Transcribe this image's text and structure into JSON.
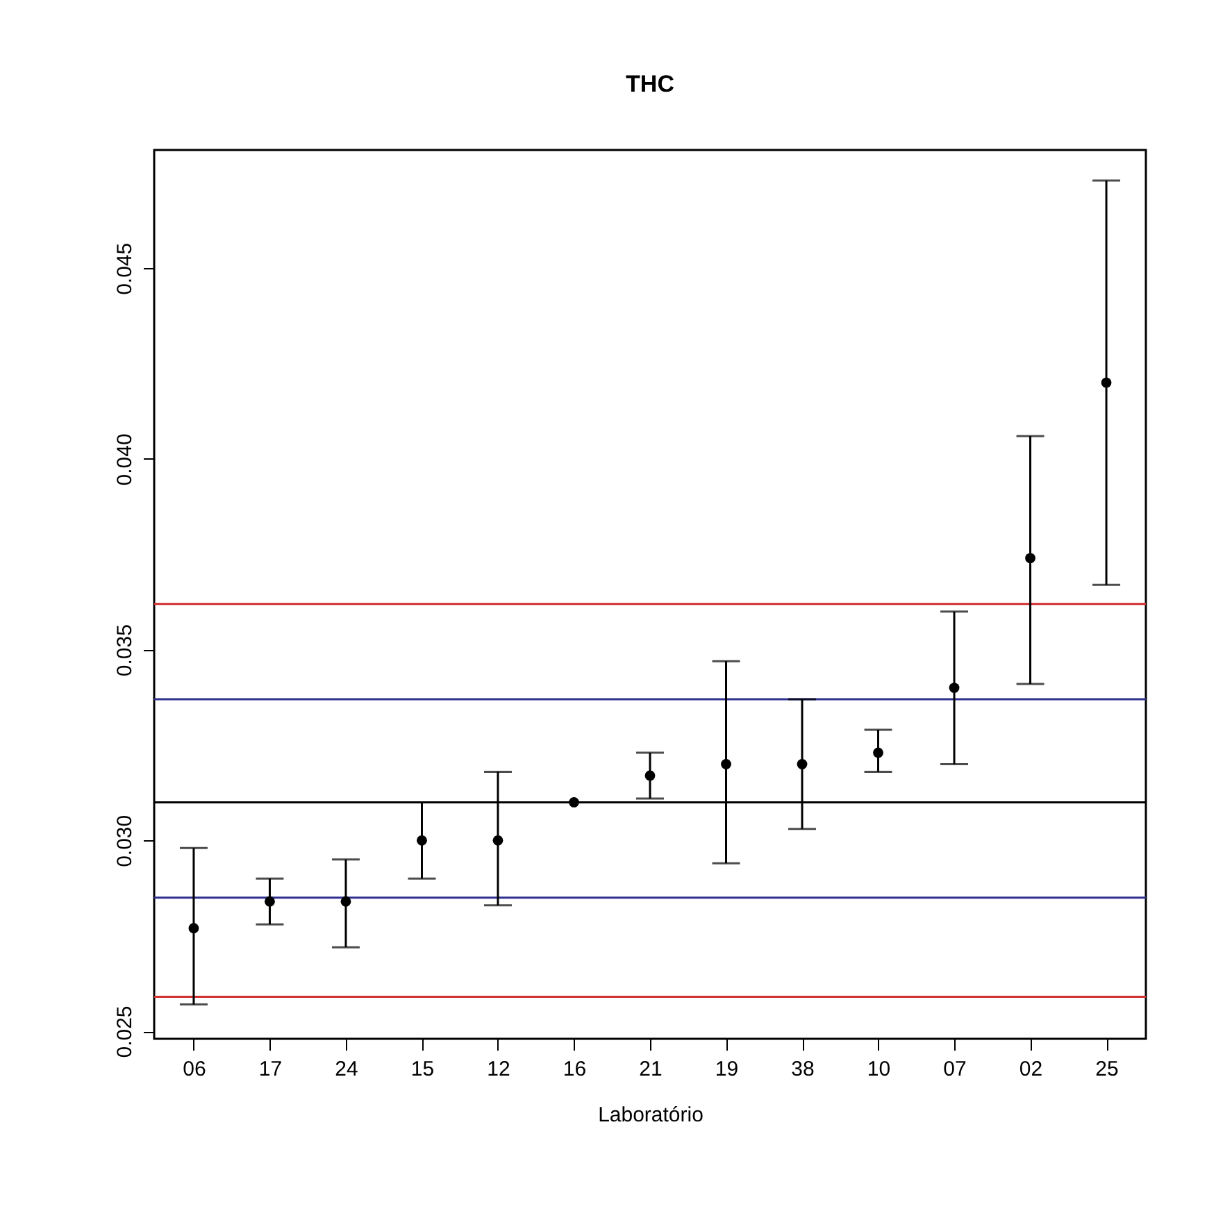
{
  "chart_data": {
    "type": "scatter",
    "title": "THC",
    "xlabel": "Laboratório",
    "categories": [
      "06",
      "17",
      "24",
      "15",
      "12",
      "16",
      "21",
      "19",
      "38",
      "10",
      "07",
      "02",
      "25"
    ],
    "series": [
      {
        "color": "#000000",
        "values": [
          0.0277,
          0.0284,
          0.0284,
          0.03,
          0.03,
          0.031,
          0.0317,
          0.032,
          0.032,
          0.0323,
          0.034,
          0.0374,
          0.042
        ],
        "errors": [
          [
            0.0257,
            0.0298
          ],
          [
            0.0278,
            0.029
          ],
          [
            0.0272,
            0.0295
          ],
          [
            0.029,
            0.031
          ],
          [
            0.0283,
            0.0318
          ],
          null,
          [
            0.0311,
            0.0323
          ],
          [
            0.0294,
            0.0347
          ],
          [
            0.0303,
            0.0337
          ],
          [
            0.0318,
            0.0329
          ],
          [
            0.032,
            0.036
          ],
          [
            0.0341,
            0.0406
          ],
          [
            0.0367,
            0.0473
          ]
        ]
      }
    ],
    "ylim": [
      0.0248,
      0.0481
    ],
    "yticks": [
      {
        "value": 0.025,
        "label": "0.025"
      },
      {
        "value": 0.03,
        "label": "0.030"
      },
      {
        "value": 0.035,
        "label": "0.035"
      },
      {
        "value": 0.04,
        "label": "0.040"
      },
      {
        "value": 0.045,
        "label": "0.045"
      }
    ],
    "marker": "circle",
    "grid": false,
    "ref_lines": [
      {
        "axis": "y",
        "value": 0.0362,
        "color": "#d03030"
      },
      {
        "axis": "y",
        "value": 0.0337,
        "color": "#303090"
      },
      {
        "axis": "y",
        "value": 0.031,
        "color": "#000000"
      },
      {
        "axis": "y",
        "value": 0.0285,
        "color": "#303090"
      },
      {
        "axis": "y",
        "value": 0.0259,
        "color": "#d03030"
      }
    ]
  }
}
